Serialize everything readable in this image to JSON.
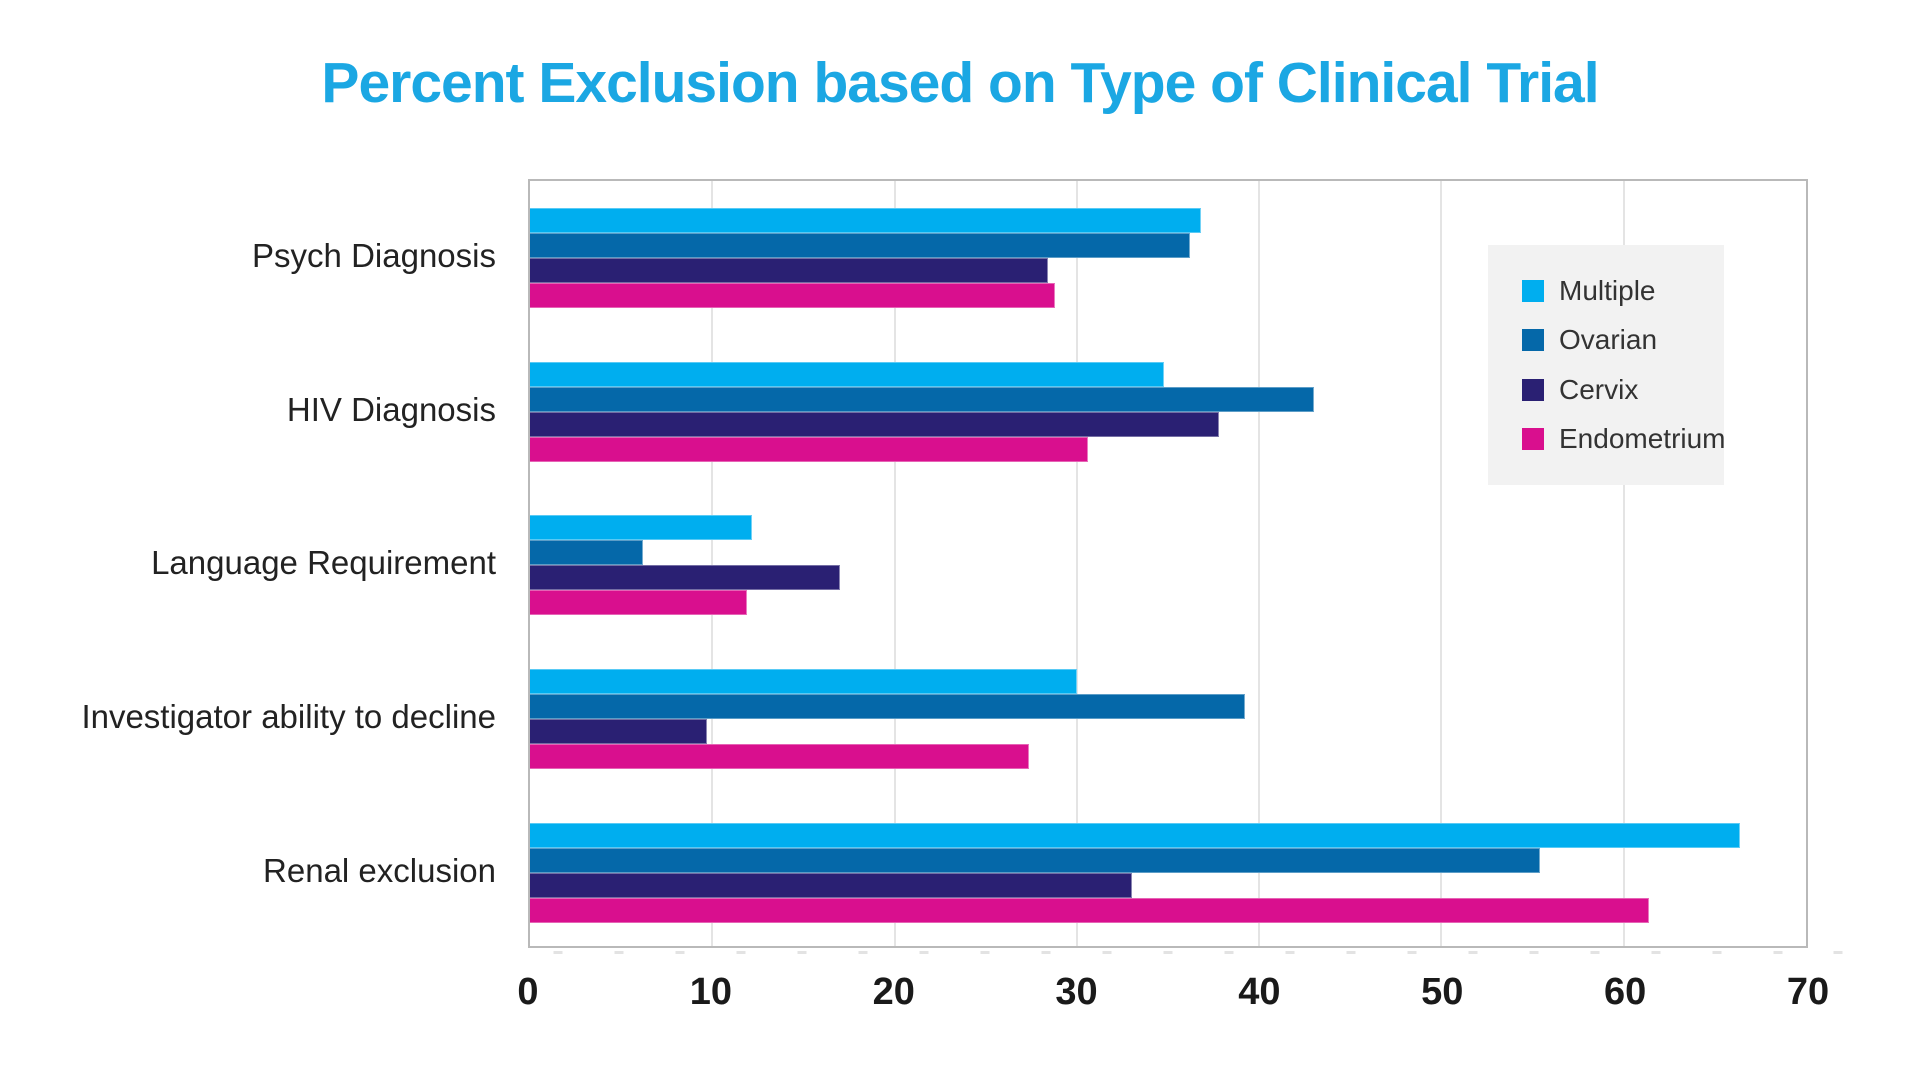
{
  "page": {
    "background": "#ffffff"
  },
  "chart_data": {
    "type": "bar",
    "orientation": "horizontal",
    "title": "Percent Exclusion based on Type of Clinical Trial",
    "title_color": "#1BA7E3",
    "categories": [
      "Psych Diagnosis",
      "HIV Diagnosis",
      "Language Requirement",
      "Investigator ability to decline",
      "Renal exclusion"
    ],
    "series": [
      {
        "name": "Multiple",
        "color": "#00AEEF",
        "values": [
          36.8,
          34.8,
          12.2,
          30.0,
          66.4
        ]
      },
      {
        "name": "Ovarian",
        "color": "#0568A9",
        "values": [
          36.2,
          43.0,
          6.2,
          39.2,
          55.4
        ]
      },
      {
        "name": "Cervix",
        "color": "#2A2073",
        "values": [
          28.4,
          37.8,
          17.0,
          9.7,
          33.0
        ]
      },
      {
        "name": "Endometrium",
        "color": "#D90F8E",
        "values": [
          28.8,
          30.6,
          11.9,
          27.4,
          61.4
        ]
      }
    ],
    "xlim": [
      0,
      70
    ],
    "x_ticks": [
      0,
      10,
      20,
      30,
      40,
      50,
      60,
      70
    ],
    "xlabel": "",
    "ylabel": "",
    "grid": "vertical-major-gridlines",
    "legend_position": "inside-upper-right",
    "legend_background": "#F2F2F2",
    "gridline_color": "#E4E4E4",
    "plot_border_color": "#B9B9B9",
    "axis_text_color": "#1A1A1A",
    "category_text_color": "#222222"
  }
}
